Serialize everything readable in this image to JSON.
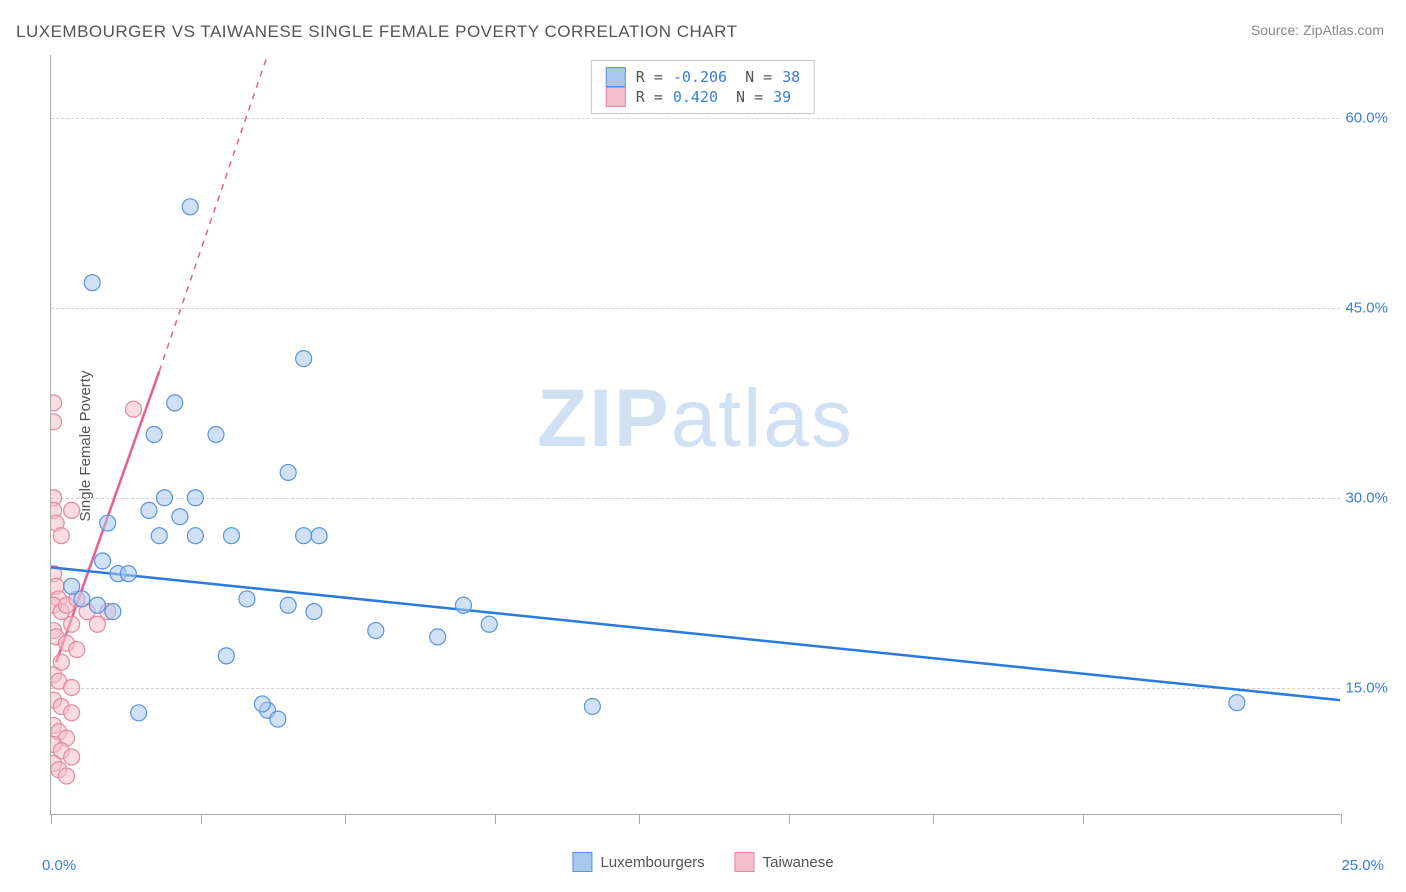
{
  "title": "LUXEMBOURGER VS TAIWANESE SINGLE FEMALE POVERTY CORRELATION CHART",
  "source": "Source: ZipAtlas.com",
  "ylabel": "Single Female Poverty",
  "watermark_a": "ZIP",
  "watermark_b": "atlas",
  "chart": {
    "type": "scatter",
    "background_color": "#ffffff",
    "grid_color": "#d0d0d0",
    "axis_color": "#aaaaaa",
    "label_color": "#3b7dd8",
    "title_color": "#555555",
    "xlim": [
      0,
      25
    ],
    "ylim": [
      5,
      65
    ],
    "yticks": [
      15,
      30,
      45,
      60
    ],
    "ytick_labels": [
      "15.0%",
      "30.0%",
      "45.0%",
      "60.0%"
    ],
    "xticks": [
      0,
      2.9,
      5.7,
      8.6,
      11.4,
      14.3,
      17.1,
      20.0,
      25
    ],
    "xtick_labels": {
      "0": "0.0%",
      "25": "25.0%"
    },
    "marker_radius": 8,
    "marker_opacity": 0.55,
    "series": [
      {
        "name": "Luxembourgers",
        "fill": "#a9c8ee",
        "stroke": "#5a93d8",
        "line_color": "#2a7ae2",
        "line_width": 2.5,
        "R": "-0.206",
        "N": "38",
        "trend": {
          "x1": 0,
          "y1": 24.5,
          "x2": 25,
          "y2": 14.0,
          "dashed_after_x": null
        },
        "points": [
          [
            2.7,
            53.0
          ],
          [
            0.8,
            47.0
          ],
          [
            4.9,
            41.0
          ],
          [
            2.4,
            37.5
          ],
          [
            2.0,
            35.0
          ],
          [
            3.2,
            35.0
          ],
          [
            4.6,
            32.0
          ],
          [
            2.2,
            30.0
          ],
          [
            2.8,
            30.0
          ],
          [
            1.9,
            29.0
          ],
          [
            2.5,
            28.5
          ],
          [
            1.1,
            28.0
          ],
          [
            2.1,
            27.0
          ],
          [
            2.8,
            27.0
          ],
          [
            3.5,
            27.0
          ],
          [
            4.9,
            27.0
          ],
          [
            5.2,
            27.0
          ],
          [
            1.0,
            25.0
          ],
          [
            1.3,
            24.0
          ],
          [
            1.5,
            24.0
          ],
          [
            0.4,
            23.0
          ],
          [
            0.6,
            22.0
          ],
          [
            0.9,
            21.5
          ],
          [
            1.2,
            21.0
          ],
          [
            3.8,
            22.0
          ],
          [
            4.6,
            21.5
          ],
          [
            5.1,
            21.0
          ],
          [
            8.0,
            21.5
          ],
          [
            8.5,
            20.0
          ],
          [
            6.3,
            19.5
          ],
          [
            7.5,
            19.0
          ],
          [
            3.4,
            17.5
          ],
          [
            1.7,
            13.0
          ],
          [
            4.2,
            13.2
          ],
          [
            4.4,
            12.5
          ],
          [
            4.1,
            13.7
          ],
          [
            10.5,
            13.5
          ],
          [
            23.0,
            13.8
          ]
        ]
      },
      {
        "name": "Taiwanese",
        "fill": "#f3bfca",
        "stroke": "#e487a0",
        "line_color": "#e75f8d",
        "line_width": 2.5,
        "R": "0.420",
        "N": "39",
        "trend": {
          "x1": 0.1,
          "y1": 17.0,
          "x2": 2.1,
          "y2": 40.0,
          "dashed_to": [
            4.2,
            65.0
          ]
        },
        "points": [
          [
            0.05,
            37.5
          ],
          [
            0.05,
            36.0
          ],
          [
            1.6,
            37.0
          ],
          [
            0.05,
            30.0
          ],
          [
            0.05,
            29.0
          ],
          [
            0.1,
            28.0
          ],
          [
            0.2,
            27.0
          ],
          [
            0.4,
            29.0
          ],
          [
            0.05,
            24.0
          ],
          [
            0.1,
            23.0
          ],
          [
            0.15,
            22.0
          ],
          [
            0.05,
            21.5
          ],
          [
            0.2,
            21.0
          ],
          [
            0.3,
            21.5
          ],
          [
            0.4,
            20.0
          ],
          [
            0.5,
            22.0
          ],
          [
            0.7,
            21.0
          ],
          [
            0.9,
            20.0
          ],
          [
            1.1,
            21.0
          ],
          [
            0.05,
            19.5
          ],
          [
            0.1,
            19.0
          ],
          [
            0.3,
            18.5
          ],
          [
            0.5,
            18.0
          ],
          [
            0.2,
            17.0
          ],
          [
            0.05,
            16.0
          ],
          [
            0.15,
            15.5
          ],
          [
            0.4,
            15.0
          ],
          [
            0.05,
            14.0
          ],
          [
            0.2,
            13.5
          ],
          [
            0.4,
            13.0
          ],
          [
            0.05,
            12.0
          ],
          [
            0.15,
            11.5
          ],
          [
            0.3,
            11.0
          ],
          [
            0.05,
            10.5
          ],
          [
            0.2,
            10.0
          ],
          [
            0.05,
            9.0
          ],
          [
            0.4,
            9.5
          ],
          [
            0.15,
            8.5
          ],
          [
            0.3,
            8.0
          ]
        ]
      }
    ]
  }
}
